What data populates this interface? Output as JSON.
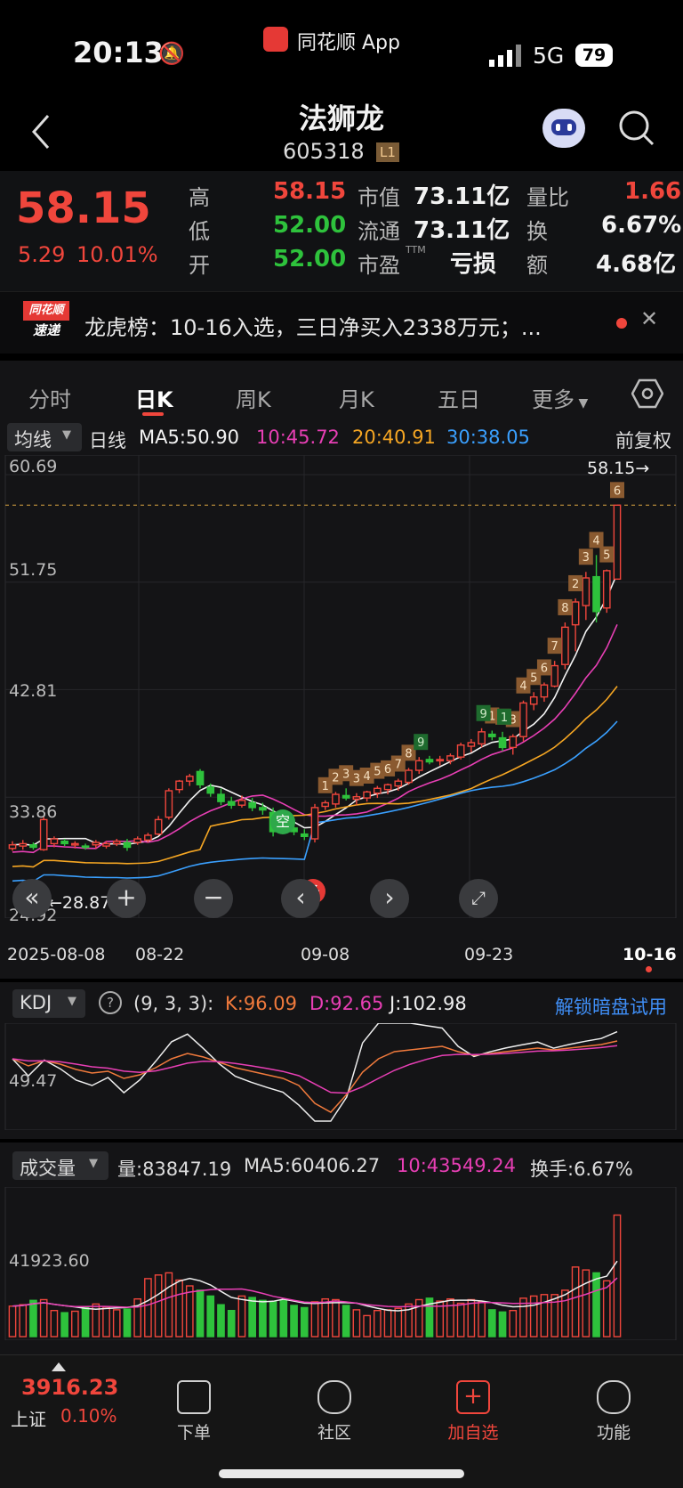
{
  "status": {
    "time": "20:13",
    "app": "同花顺 App",
    "network": "5G",
    "battery": "79"
  },
  "header": {
    "name": "法狮龙",
    "code": "605318",
    "level": "L1"
  },
  "quote": {
    "price": "58.15",
    "change": "5.29",
    "change_pct": "10.01%",
    "high_label": "高",
    "high": "58.15",
    "low_label": "低",
    "low": "52.00",
    "open_label": "开",
    "open": "52.00",
    "mcap_label": "市值",
    "mcap": "73.11亿",
    "float_label": "流通",
    "float": "73.11亿",
    "pe_label": "市盈",
    "pe_sup": "TTM",
    "pe": "亏损",
    "volratio_label": "量比",
    "volratio": "1.66",
    "turnover_label": "换",
    "turnover": "6.67%",
    "amount_label": "额",
    "amount": "4.68亿"
  },
  "news": {
    "badge_top": "同花顺",
    "badge_bottom": "速递",
    "text": "龙虎榜：10-16入选，三日净买入2338万元；..."
  },
  "tabs": [
    "分时",
    "日K",
    "周K",
    "月K",
    "五日",
    "更多"
  ],
  "active_tab": 1,
  "ma_bar": {
    "type": "均线",
    "period": "日线",
    "ma5": "MA5:50.90",
    "ma10": "10:45.72",
    "ma20": "20:40.91",
    "ma30": "30:38.05",
    "adjust": "前复权"
  },
  "price_axis": [
    "60.69",
    "51.75",
    "42.81",
    "33.86",
    "24.92"
  ],
  "last_price_tag": "58.15",
  "low_tag": "28.87",
  "marker_kong": "空",
  "marker_duo": "多",
  "dates": [
    "2025-08-08",
    "08-22",
    "09-08",
    "09-23",
    "10-16"
  ],
  "kdj_bar": {
    "type": "KDJ",
    "params": "(9, 3, 3):",
    "k": "K:96.09",
    "d": "D:92.65",
    "j": "J:102.98",
    "unlock": "解锁暗盘试用",
    "axis": "49.47"
  },
  "vol_bar": {
    "type": "成交量",
    "vol": "量:83847.19",
    "ma5": "MA5:60406.27",
    "ma10": "10:43549.24",
    "turnover": "换手:6.67%",
    "axis": "41923.60"
  },
  "bottom": {
    "index_value": "3916.23",
    "index_name": "上证",
    "index_pct": "0.10%",
    "items": [
      "下单",
      "社区",
      "加自选",
      "功能"
    ]
  },
  "colors": {
    "up": "#f0463c",
    "down": "#2ec23c",
    "ma5": "#f2f2f2",
    "ma10": "#e83fb5",
    "ma20": "#f5a623",
    "ma30": "#3aa0ff",
    "link": "#3f8ef5"
  },
  "chart_data": {
    "type": "candlestick",
    "ylim": [
      24.92,
      60.69
    ],
    "candles": [
      [
        29.6,
        30.2,
        29.4,
        29.9
      ],
      [
        29.8,
        30.3,
        29.5,
        30.0
      ],
      [
        29.9,
        30.1,
        29.5,
        29.7
      ],
      [
        29.5,
        32.2,
        29.4,
        32.0
      ],
      [
        30.0,
        30.6,
        29.7,
        30.4
      ],
      [
        30.2,
        30.4,
        29.8,
        30.0
      ],
      [
        29.9,
        30.2,
        29.6,
        30.0
      ],
      [
        29.8,
        30.0,
        29.5,
        29.7
      ],
      [
        29.9,
        30.3,
        29.6,
        30.1
      ],
      [
        29.8,
        30.2,
        29.6,
        30.0
      ],
      [
        30.0,
        30.4,
        29.8,
        30.2
      ],
      [
        30.1,
        30.4,
        29.4,
        29.7
      ],
      [
        30.1,
        30.6,
        29.9,
        30.4
      ],
      [
        30.3,
        30.9,
        30.1,
        30.7
      ],
      [
        30.8,
        32.3,
        30.7,
        32.0
      ],
      [
        32.2,
        34.6,
        32.0,
        34.4
      ],
      [
        34.5,
        35.3,
        34.2,
        35.2
      ],
      [
        35.2,
        35.8,
        34.8,
        35.6
      ],
      [
        36.0,
        36.2,
        34.6,
        34.9
      ],
      [
        34.7,
        35.0,
        33.9,
        34.2
      ],
      [
        34.1,
        34.6,
        33.2,
        33.5
      ],
      [
        33.5,
        33.9,
        32.9,
        33.2
      ],
      [
        33.2,
        34.0,
        33.0,
        33.6
      ],
      [
        33.4,
        33.8,
        32.7,
        33.0
      ],
      [
        33.0,
        33.4,
        32.4,
        32.8
      ],
      [
        32.6,
        33.0,
        30.6,
        31.0
      ],
      [
        31.5,
        31.9,
        30.9,
        31.2
      ],
      [
        31.3,
        31.7,
        30.7,
        31.0
      ],
      [
        30.8,
        31.2,
        30.3,
        30.6
      ],
      [
        30.4,
        33.3,
        30.1,
        33.0
      ],
      [
        33.1,
        33.6,
        32.8,
        33.4
      ],
      [
        33.3,
        34.3,
        33.0,
        34.1
      ],
      [
        34.0,
        34.6,
        33.6,
        33.8
      ],
      [
        33.7,
        34.2,
        33.2,
        33.9
      ],
      [
        33.8,
        34.4,
        33.5,
        34.3
      ],
      [
        34.2,
        34.8,
        33.8,
        34.6
      ],
      [
        34.5,
        35.0,
        34.1,
        34.9
      ],
      [
        34.8,
        35.4,
        34.4,
        35.2
      ],
      [
        35.1,
        36.3,
        34.9,
        36.1
      ],
      [
        36.1,
        37.2,
        35.8,
        36.9
      ],
      [
        37.0,
        37.3,
        36.6,
        36.8
      ],
      [
        36.9,
        37.3,
        36.5,
        37.0
      ],
      [
        36.9,
        37.5,
        36.6,
        37.3
      ],
      [
        37.2,
        38.4,
        37.0,
        38.2
      ],
      [
        38.1,
        38.7,
        37.6,
        38.4
      ],
      [
        38.3,
        39.6,
        38.0,
        39.3
      ],
      [
        39.1,
        39.4,
        38.6,
        38.9
      ],
      [
        38.8,
        39.3,
        37.7,
        38.0
      ],
      [
        38.0,
        39.1,
        37.4,
        38.9
      ],
      [
        38.9,
        41.9,
        38.5,
        41.7
      ],
      [
        41.6,
        42.6,
        41.1,
        42.2
      ],
      [
        42.2,
        43.4,
        41.8,
        43.2
      ],
      [
        43.1,
        45.2,
        43.0,
        44.8
      ],
      [
        44.9,
        48.4,
        44.5,
        48.0
      ],
      [
        48.2,
        50.4,
        46.0,
        50.1
      ],
      [
        49.8,
        52.6,
        48.6,
        52.1
      ],
      [
        52.2,
        54.0,
        48.4,
        49.3
      ],
      [
        49.6,
        52.8,
        49.2,
        52.7
      ],
      [
        52.0,
        58.15,
        52.0,
        58.15
      ]
    ],
    "volume": [
      21000,
      22000,
      25000,
      25500,
      18000,
      16500,
      17500,
      20000,
      22500,
      20500,
      18500,
      19000,
      26000,
      40000,
      42500,
      44000,
      39000,
      35000,
      32000,
      28000,
      22000,
      18000,
      28000,
      27000,
      25000,
      24000,
      25000,
      21500,
      20000,
      24000,
      26000,
      25500,
      21500,
      18500,
      14500,
      18000,
      18500,
      19500,
      22500,
      25500,
      26500,
      24500,
      26000,
      23000,
      25500,
      24000,
      18500,
      17000,
      18000,
      26500,
      28000,
      29000,
      29000,
      32000,
      48000,
      46000,
      44000,
      38500,
      83847
    ],
    "marks_up": [
      1,
      2,
      3,
      3,
      4,
      5,
      6,
      7,
      8,
      1,
      2,
      3,
      4,
      5,
      6,
      7,
      8,
      2,
      3,
      4,
      5,
      6
    ],
    "marks_down": [
      9,
      9,
      1
    ]
  }
}
